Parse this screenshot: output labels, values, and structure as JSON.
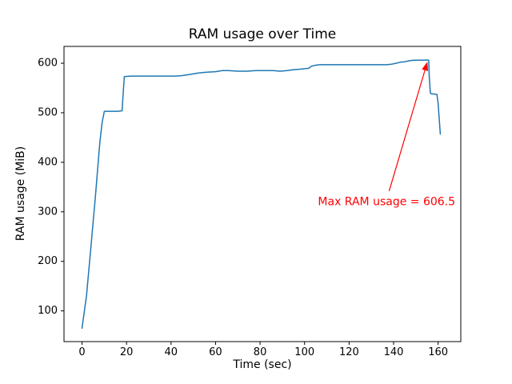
{
  "figure": {
    "background": "#ffffff"
  },
  "chart_data": {
    "type": "line",
    "title": "RAM usage over Time",
    "xlabel": "Time (sec)",
    "ylabel": "RAM usage (MiB)",
    "grid": false,
    "legend": null,
    "line_color": "#1f77b4",
    "line_width": 1.5,
    "xlim": [
      -8.1,
      170.2
    ],
    "ylim": [
      38,
      634
    ],
    "x_ticks": [
      0,
      20,
      40,
      60,
      80,
      100,
      120,
      140,
      160
    ],
    "y_ticks": [
      100,
      200,
      300,
      400,
      500,
      600
    ],
    "points": [
      [
        0,
        65
      ],
      [
        2,
        130
      ],
      [
        4,
        230
      ],
      [
        6,
        330
      ],
      [
        8,
        440
      ],
      [
        9,
        480
      ],
      [
        10,
        503
      ],
      [
        12,
        503
      ],
      [
        14,
        503
      ],
      [
        16,
        503
      ],
      [
        18,
        504
      ],
      [
        18.5,
        540
      ],
      [
        19,
        573
      ],
      [
        22,
        574
      ],
      [
        26,
        574
      ],
      [
        30,
        574
      ],
      [
        34,
        574
      ],
      [
        38,
        574
      ],
      [
        42,
        574
      ],
      [
        45,
        575
      ],
      [
        48,
        577
      ],
      [
        52,
        580
      ],
      [
        56,
        582
      ],
      [
        60,
        583
      ],
      [
        63,
        585
      ],
      [
        66,
        585
      ],
      [
        70,
        584
      ],
      [
        74,
        584
      ],
      [
        78,
        585
      ],
      [
        82,
        585
      ],
      [
        86,
        585
      ],
      [
        89,
        584
      ],
      [
        92,
        585
      ],
      [
        95,
        587
      ],
      [
        98,
        588
      ],
      [
        100,
        589
      ],
      [
        102,
        590
      ],
      [
        103,
        594
      ],
      [
        105,
        596
      ],
      [
        107,
        597
      ],
      [
        110,
        597
      ],
      [
        114,
        597
      ],
      [
        118,
        597
      ],
      [
        122,
        597
      ],
      [
        126,
        597
      ],
      [
        130,
        597
      ],
      [
        134,
        597
      ],
      [
        137,
        597
      ],
      [
        139,
        598
      ],
      [
        141,
        600
      ],
      [
        143,
        602
      ],
      [
        145,
        603
      ],
      [
        147,
        605
      ],
      [
        149,
        606
      ],
      [
        151,
        606
      ],
      [
        153,
        606
      ],
      [
        155,
        606.5
      ],
      [
        155.8,
        606
      ],
      [
        156,
        575
      ],
      [
        156.5,
        540
      ],
      [
        157,
        538
      ],
      [
        158,
        538
      ],
      [
        159.5,
        537
      ],
      [
        160,
        520
      ],
      [
        161,
        457
      ]
    ],
    "max_value": 606.5,
    "annotation": {
      "text": "Max RAM usage = 606.5",
      "color": "#ff0000",
      "text_pos": [
        106,
        320
      ],
      "arrow_start": [
        138,
        342
      ],
      "arrow_end": [
        155.2,
        603
      ]
    }
  }
}
